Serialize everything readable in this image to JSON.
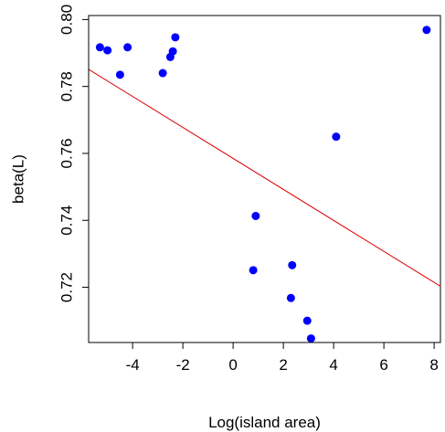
{
  "chart_data": {
    "type": "scatter",
    "title": "",
    "xlabel": "Log(island area)",
    "ylabel": "beta(L)",
    "xlim": [
      -5.75,
      8.25
    ],
    "ylim": [
      0.7035,
      0.8012
    ],
    "xticks": [
      -4,
      -2,
      0,
      2,
      4,
      6,
      8
    ],
    "xtick_labels": [
      "-4",
      "-2",
      "0",
      "2",
      "4",
      "6",
      "8"
    ],
    "yticks": [
      0.72,
      0.74,
      0.76,
      0.78,
      0.8
    ],
    "ytick_labels": [
      "0.72",
      "0.74",
      "0.76",
      "0.78",
      "0.80"
    ],
    "grid": false,
    "legend": "none",
    "point_color": "#0000ff",
    "line_color": "#dd0000",
    "points": [
      {
        "x": -5.3,
        "y": 0.7917
      },
      {
        "x": -5.0,
        "y": 0.7908
      },
      {
        "x": -4.5,
        "y": 0.7835
      },
      {
        "x": -4.2,
        "y": 0.7917
      },
      {
        "x": -2.8,
        "y": 0.784
      },
      {
        "x": -2.5,
        "y": 0.7888
      },
      {
        "x": -2.4,
        "y": 0.7905
      },
      {
        "x": -2.3,
        "y": 0.7947
      },
      {
        "x": 0.8,
        "y": 0.7251
      },
      {
        "x": 0.9,
        "y": 0.7413
      },
      {
        "x": 2.3,
        "y": 0.7168
      },
      {
        "x": 2.35,
        "y": 0.7266
      },
      {
        "x": 2.95,
        "y": 0.71
      },
      {
        "x": 3.1,
        "y": 0.7047
      },
      {
        "x": 4.1,
        "y": 0.765
      },
      {
        "x": 7.7,
        "y": 0.7969
      }
    ],
    "fit_line": {
      "intercept": 0.7585,
      "slope": -0.00463
    }
  }
}
